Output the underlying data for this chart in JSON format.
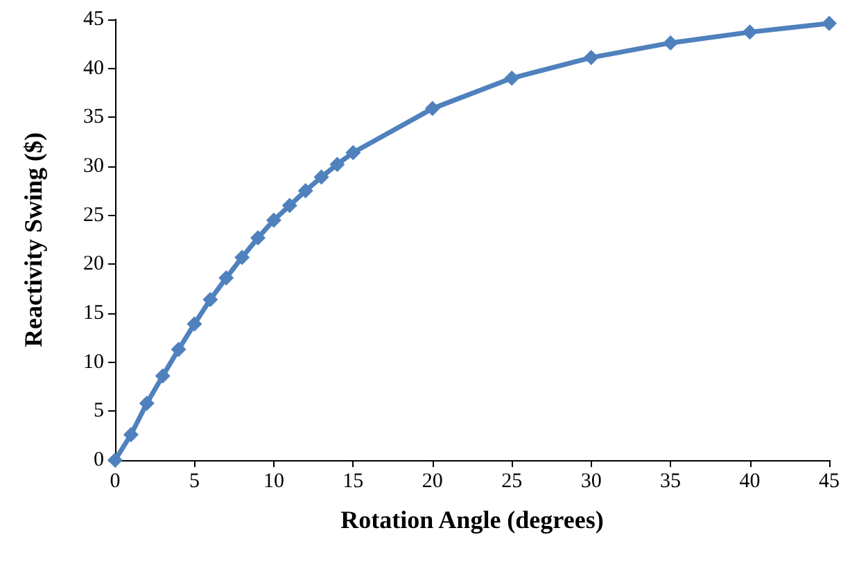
{
  "chart_data": {
    "type": "line",
    "xlabel": "Rotation Angle (degrees)",
    "ylabel": "Reactivity Swing ($)",
    "x": [
      0,
      1,
      2,
      3,
      4,
      5,
      6,
      7,
      8,
      9,
      10,
      11,
      12,
      13,
      14,
      15,
      20,
      25,
      30,
      35,
      40,
      45
    ],
    "series": [
      {
        "color": "#4f81bd",
        "values": [
          0,
          2.6,
          5.8,
          8.6,
          11.3,
          13.9,
          16.4,
          18.6,
          20.7,
          22.7,
          24.5,
          26,
          27.5,
          28.9,
          30.2,
          31.4,
          35.9,
          39,
          41.1,
          42.6,
          43.7,
          44.6
        ]
      }
    ],
    "xlim": [
      0,
      45
    ],
    "xticks": [
      0,
      5,
      10,
      15,
      20,
      25,
      30,
      35,
      40,
      45
    ],
    "ylim": [
      0,
      45
    ],
    "yticks": [
      0,
      5,
      10,
      15,
      20,
      25,
      30,
      35,
      40,
      45
    ],
    "marker": "diamond",
    "line_style": "solid"
  }
}
